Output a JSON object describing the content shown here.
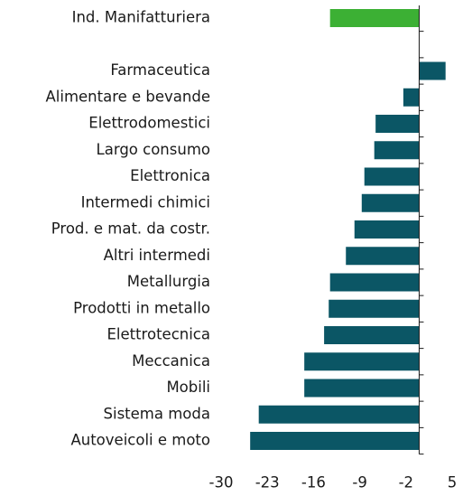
{
  "chart_data": {
    "type": "bar",
    "orientation": "horizontal",
    "categories": [
      "Ind. Manifatturiera",
      null,
      "Farmaceutica",
      "Alimentare e bevande",
      "Elettrodomestici",
      "Largo consumo",
      "Elettronica",
      "Intermedi chimici",
      "Prod. e mat. da costr.",
      "Altri intermedi",
      "Metallurgia",
      "Prodotti in metallo",
      "Elettrotecnica",
      "Meccanica",
      "Mobili",
      "Sistema moda",
      "Autoveicoli e moto"
    ],
    "values": [
      -13.5,
      null,
      4.0,
      -2.4,
      -6.6,
      -6.8,
      -8.3,
      -8.7,
      -9.8,
      -11.1,
      -13.5,
      -13.7,
      -14.4,
      -17.4,
      -17.4,
      -24.3,
      -25.6
    ],
    "colors": [
      "#3cb034",
      null,
      "#0b5665",
      "#0b5665",
      "#0b5665",
      "#0b5665",
      "#0b5665",
      "#0b5665",
      "#0b5665",
      "#0b5665",
      "#0b5665",
      "#0b5665",
      "#0b5665",
      "#0b5665",
      "#0b5665",
      "#0b5665",
      "#0b5665"
    ],
    "xlim": [
      -30,
      5
    ],
    "xticks": [
      -30,
      -23,
      -16,
      -9,
      -2,
      5
    ],
    "grid": false
  }
}
